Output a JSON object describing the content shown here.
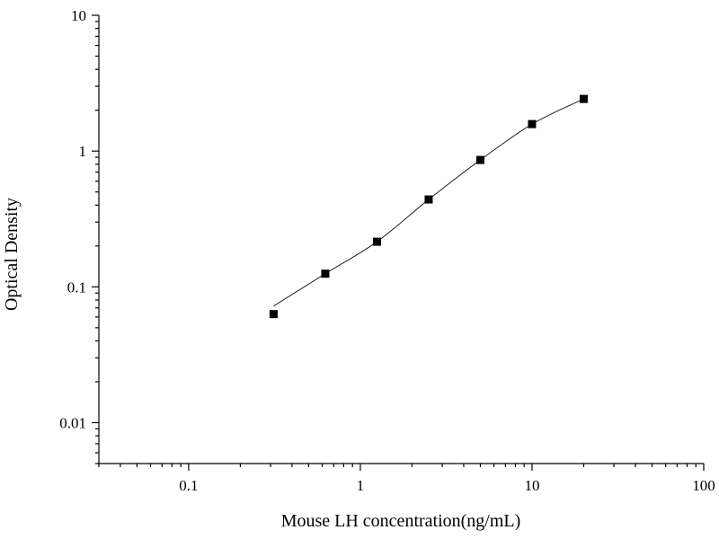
{
  "chart_data": {
    "type": "scatter",
    "title": "",
    "xlabel": "Mouse LH concentration(ng/mL)",
    "ylabel": "Optical Density",
    "xscale": "log",
    "yscale": "log",
    "xlim": [
      0.03,
      100
    ],
    "ylim": [
      0.005,
      10
    ],
    "x_ticks": [
      0.1,
      1,
      10,
      100
    ],
    "x_tick_labels": [
      "0.1",
      "1",
      "10",
      "100"
    ],
    "y_ticks": [
      0.01,
      0.1,
      1,
      10
    ],
    "y_tick_labels": [
      "0.01",
      "0.1",
      "1",
      "10"
    ],
    "grid": false,
    "legend": "none",
    "marker": "square",
    "marker_color": "#000000",
    "line_color": "#222222",
    "series": [
      {
        "x": [
          0.3125,
          0.625,
          1.25,
          2.5,
          5,
          10,
          20
        ],
        "y": [
          0.063,
          0.125,
          0.215,
          0.44,
          0.86,
          1.58,
          2.42
        ]
      }
    ]
  }
}
